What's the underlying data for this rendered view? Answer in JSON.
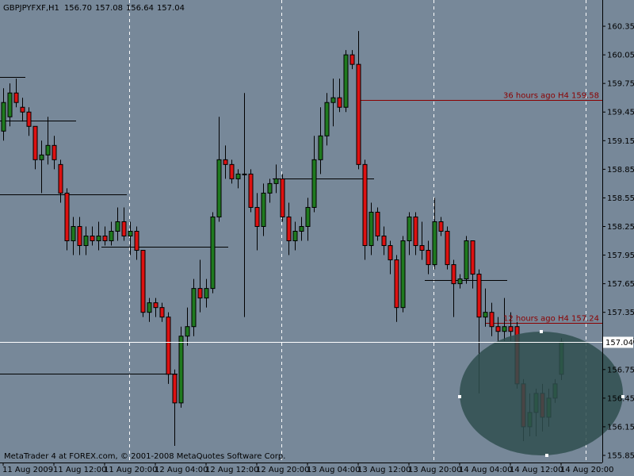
{
  "chart_data": {
    "type": "candlestick",
    "symbol": "GBPJPYFXF,H1",
    "quote_labels": [
      "156.70",
      "157.08",
      "156.64",
      "157.04"
    ],
    "footer": "MetaTrader 4 at FOREX.com, © 2001-2008 MetaQuotes Software Corp.",
    "up_color": "#1f7a1f",
    "down_color": "#dd1111",
    "categories": [
      "11 Aug 2009",
      null,
      null,
      null,
      null,
      null,
      null,
      null,
      "11 Aug 12:00",
      null,
      null,
      null,
      null,
      null,
      null,
      null,
      "11 Aug 20:00",
      null,
      null,
      null,
      null,
      null,
      null,
      null,
      "12 Aug 04:00",
      null,
      null,
      null,
      null,
      null,
      null,
      null,
      "12 Aug 12:00",
      null,
      null,
      null,
      null,
      null,
      null,
      null,
      "12 Aug 20:00",
      null,
      null,
      null,
      null,
      null,
      null,
      null,
      "13 Aug 04:00",
      null,
      null,
      null,
      null,
      null,
      null,
      null,
      "13 Aug 12:00",
      null,
      null,
      null,
      null,
      null,
      null,
      null,
      "13 Aug 20:00",
      null,
      null,
      null,
      null,
      null,
      null,
      null,
      "14 Aug 04:00",
      null,
      null,
      null,
      null,
      null,
      null,
      null,
      "14 Aug 12:00",
      null,
      null,
      null,
      null,
      null,
      null,
      null,
      "14 Aug 20:00"
    ],
    "ohlc": [
      [
        159.25,
        159.7,
        159.15,
        159.55
      ],
      [
        159.4,
        159.75,
        159.3,
        159.65
      ],
      [
        159.65,
        159.8,
        159.5,
        159.55
      ],
      [
        159.5,
        159.6,
        159.35,
        159.45
      ],
      [
        159.45,
        159.5,
        159.2,
        159.3
      ],
      [
        159.3,
        159.3,
        158.85,
        158.95
      ],
      [
        158.95,
        159.15,
        158.6,
        159.0
      ],
      [
        159.0,
        159.4,
        158.9,
        159.1
      ],
      [
        159.1,
        159.2,
        158.85,
        158.95
      ],
      [
        158.9,
        158.95,
        158.5,
        158.6
      ],
      [
        158.6,
        158.65,
        158.0,
        158.1
      ],
      [
        158.1,
        158.35,
        157.95,
        158.25
      ],
      [
        158.25,
        158.35,
        157.95,
        158.05
      ],
      [
        158.05,
        158.25,
        157.95,
        158.15
      ],
      [
        158.15,
        158.25,
        158.05,
        158.1
      ],
      [
        158.1,
        158.3,
        158.0,
        158.15
      ],
      [
        158.15,
        158.25,
        158.05,
        158.1
      ],
      [
        158.1,
        158.3,
        158.05,
        158.2
      ],
      [
        158.2,
        158.45,
        158.1,
        158.3
      ],
      [
        158.3,
        158.45,
        158.1,
        158.15
      ],
      [
        158.15,
        158.3,
        157.95,
        158.2
      ],
      [
        158.2,
        158.25,
        157.9,
        158.0
      ],
      [
        158.0,
        158.0,
        157.3,
        157.35
      ],
      [
        157.35,
        157.5,
        157.25,
        157.45
      ],
      [
        157.45,
        157.5,
        157.3,
        157.4
      ],
      [
        157.4,
        157.45,
        157.25,
        157.3
      ],
      [
        157.3,
        157.35,
        156.6,
        156.7
      ],
      [
        156.7,
        156.75,
        155.95,
        156.4
      ],
      [
        156.4,
        157.2,
        156.35,
        157.1
      ],
      [
        157.1,
        157.4,
        157.0,
        157.2
      ],
      [
        157.2,
        157.7,
        157.1,
        157.6
      ],
      [
        157.6,
        157.9,
        157.35,
        157.5
      ],
      [
        157.5,
        157.7,
        157.4,
        157.6
      ],
      [
        157.6,
        158.4,
        157.55,
        158.35
      ],
      [
        158.35,
        159.4,
        158.3,
        158.95
      ],
      [
        158.95,
        159.1,
        158.75,
        158.9
      ],
      [
        158.9,
        158.95,
        158.7,
        158.75
      ],
      [
        158.75,
        158.85,
        158.65,
        158.8
      ],
      [
        158.8,
        159.65,
        157.3,
        158.8
      ],
      [
        158.8,
        158.85,
        158.4,
        158.45
      ],
      [
        158.45,
        158.6,
        158.0,
        158.25
      ],
      [
        158.25,
        158.7,
        158.15,
        158.6
      ],
      [
        158.6,
        158.75,
        158.5,
        158.7
      ],
      [
        158.7,
        158.9,
        158.6,
        158.75
      ],
      [
        158.75,
        158.8,
        158.3,
        158.35
      ],
      [
        158.35,
        158.5,
        157.95,
        158.1
      ],
      [
        158.1,
        158.3,
        158.0,
        158.2
      ],
      [
        158.2,
        158.35,
        158.1,
        158.25
      ],
      [
        158.25,
        158.55,
        158.1,
        158.45
      ],
      [
        158.45,
        159.2,
        158.4,
        158.95
      ],
      [
        158.95,
        159.5,
        158.8,
        159.2
      ],
      [
        159.2,
        159.65,
        159.1,
        159.55
      ],
      [
        159.55,
        159.8,
        159.3,
        159.6
      ],
      [
        159.6,
        159.8,
        159.45,
        159.5
      ],
      [
        159.5,
        160.1,
        159.45,
        160.05
      ],
      [
        160.05,
        160.1,
        159.9,
        159.95
      ],
      [
        159.95,
        160.3,
        158.85,
        158.9
      ],
      [
        158.9,
        158.95,
        157.9,
        158.05
      ],
      [
        158.05,
        158.5,
        157.95,
        158.4
      ],
      [
        158.4,
        158.45,
        158.1,
        158.15
      ],
      [
        158.15,
        158.25,
        157.95,
        158.05
      ],
      [
        158.05,
        158.1,
        157.75,
        157.9
      ],
      [
        157.9,
        157.95,
        157.25,
        157.4
      ],
      [
        157.4,
        158.15,
        157.35,
        158.1
      ],
      [
        158.1,
        158.4,
        157.95,
        158.35
      ],
      [
        158.35,
        158.4,
        157.95,
        158.05
      ],
      [
        158.05,
        158.3,
        157.9,
        158.0
      ],
      [
        158.0,
        158.1,
        157.75,
        157.85
      ],
      [
        157.85,
        158.55,
        157.8,
        158.3
      ],
      [
        158.3,
        158.35,
        158.15,
        158.2
      ],
      [
        158.2,
        158.25,
        157.8,
        157.85
      ],
      [
        157.85,
        157.9,
        157.3,
        157.65
      ],
      [
        157.65,
        157.75,
        157.6,
        157.7
      ],
      [
        157.7,
        158.15,
        157.65,
        158.1
      ],
      [
        158.1,
        158.1,
        157.6,
        157.75
      ],
      [
        157.75,
        157.8,
        156.5,
        157.3
      ],
      [
        157.3,
        157.6,
        157.2,
        157.35
      ],
      [
        157.35,
        157.45,
        157.1,
        157.2
      ],
      [
        157.2,
        157.3,
        157.05,
        157.15
      ],
      [
        157.15,
        157.5,
        157.05,
        157.2
      ],
      [
        157.2,
        157.35,
        157.05,
        157.15
      ],
      [
        157.2,
        157.25,
        156.55,
        156.6
      ],
      [
        156.6,
        156.65,
        156.0,
        156.15
      ],
      [
        156.15,
        156.5,
        156.05,
        156.3
      ],
      [
        156.3,
        156.55,
        156.05,
        156.5
      ],
      [
        156.5,
        156.6,
        156.1,
        156.25
      ],
      [
        156.25,
        156.55,
        156.15,
        156.45
      ],
      [
        156.45,
        156.65,
        156.4,
        156.6
      ],
      [
        156.7,
        157.08,
        156.64,
        157.04
      ]
    ],
    "levels": [
      {
        "value": 159.82,
        "from": 0,
        "to": 3
      },
      {
        "value": 159.36,
        "from": 0,
        "to": 11
      },
      {
        "value": 158.59,
        "from": 0,
        "to": 19
      },
      {
        "value": 158.04,
        "from": 16,
        "to": 35
      },
      {
        "value": 158.75,
        "from": 43,
        "to": 58
      },
      {
        "value": 157.69,
        "from": 67,
        "to": 79
      },
      {
        "value": 156.71,
        "from": 0,
        "to": 27
      }
    ],
    "annotations": [
      {
        "text": "36 hours ago H4 159.58",
        "value": 159.58,
        "from": 56
      },
      {
        "text": "12 hours ago H4 157.24",
        "value": 157.24,
        "from": 76
      }
    ],
    "bid": 157.04,
    "ylim": [
      155.775,
      160.625
    ],
    "yticks": [
      160.35,
      160.05,
      159.75,
      159.45,
      159.15,
      158.85,
      158.55,
      158.25,
      157.95,
      157.65,
      157.35,
      157.05,
      156.75,
      156.45,
      156.15,
      155.85
    ]
  }
}
